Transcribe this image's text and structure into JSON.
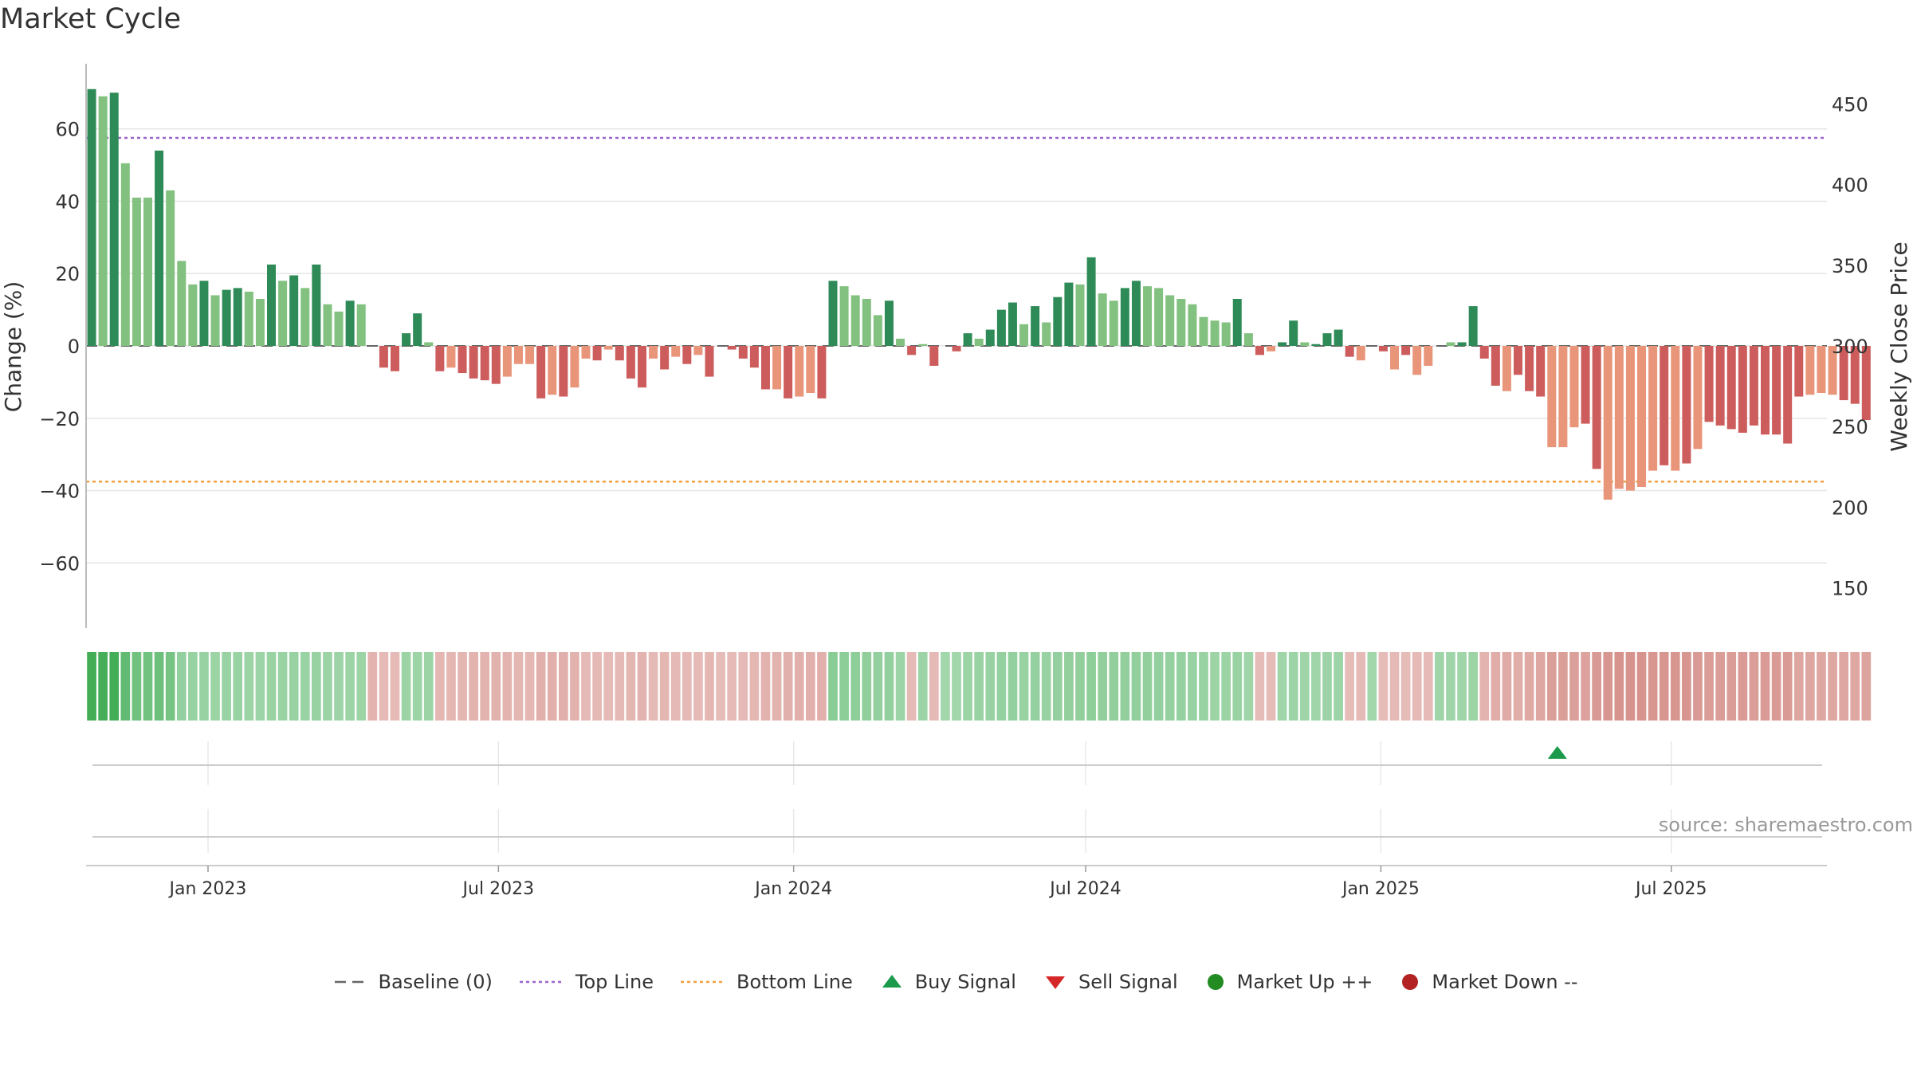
{
  "page": {
    "title": "Market Cycle",
    "source": "source: sharemaestro.com"
  },
  "legend": {
    "baseline": "Baseline (0)",
    "top_line": "Top Line",
    "bottom_line": "Bottom Line",
    "buy_signal": "Buy Signal",
    "sell_signal": "Sell Signal",
    "market_up": "Market Up ++",
    "market_down": "Market Down --"
  },
  "colors": {
    "bar_strong_up": "#2e8b57",
    "bar_up": "#82c17f",
    "bar_strong_down": "#cd5c5c",
    "bar_down": "#e8957a",
    "top_line": "#9966cc",
    "bottom_line": "#f0a040",
    "buy_signal": "#1a9a4a",
    "sell_signal": "#d62728",
    "market_up": "#228b22",
    "market_down": "#b22222",
    "baseline": "#666666"
  },
  "chart_data": {
    "type": "bar",
    "ylabel": "Change (%)",
    "ylabel_right": "Weekly Close Price",
    "ylim": [
      -78,
      78
    ],
    "yticks": [
      -60,
      -40,
      -20,
      0,
      20,
      40,
      60
    ],
    "ytick_labels": [
      "−60",
      "−40",
      "−20",
      "0",
      "20",
      "40",
      "60"
    ],
    "right_ylim": [
      125,
      475
    ],
    "right_yticks": [
      150,
      200,
      250,
      300,
      350,
      400,
      450
    ],
    "right_ytick_labels": [
      "150",
      "200",
      "250",
      "300",
      "350",
      "400",
      "450"
    ],
    "x_start": "2022-10-17",
    "x_end": "2025-10-06",
    "x_ticks": [
      {
        "date": "2023-01-01",
        "label": "Jan 2023"
      },
      {
        "date": "2023-07-01",
        "label": "Jul 2023"
      },
      {
        "date": "2024-01-01",
        "label": "Jan 2024"
      },
      {
        "date": "2024-07-01",
        "label": "Jul 2024"
      },
      {
        "date": "2025-01-01",
        "label": "Jan 2025"
      },
      {
        "date": "2025-07-01",
        "label": "Jul 2025"
      }
    ],
    "top_line": 57.5,
    "bottom_line": -37.5,
    "grid": true,
    "legend_position": "bottom",
    "first_week": "2022-10-17",
    "values": [
      71,
      69,
      70,
      50.5,
      41,
      41,
      54,
      43,
      23.5,
      17,
      18,
      14,
      15.5,
      16,
      15,
      13,
      22.5,
      18,
      19.5,
      16,
      22.5,
      11.5,
      9.5,
      12.5,
      11.5,
      0,
      -6,
      -7,
      3.5,
      9,
      1,
      -7,
      -6,
      -7.5,
      -9,
      -9.5,
      -10.5,
      -8.5,
      -5,
      -5,
      -14.5,
      -13.5,
      -14,
      -11.5,
      -3.5,
      -4,
      -1,
      -4,
      -9,
      -11.5,
      -3.5,
      -6.5,
      -3,
      -5,
      -2.5,
      -8.5,
      0,
      -1,
      -3.5,
      -6,
      -12,
      -12,
      -14.5,
      -14,
      -13,
      -14.5,
      18,
      16.5,
      14,
      13,
      8.5,
      12.5,
      2,
      -2.5,
      0.5,
      -5.5,
      0,
      -1.5,
      3.5,
      2,
      4.5,
      10,
      12,
      6,
      11,
      6.5,
      13.5,
      17.5,
      17,
      24.5,
      14.5,
      12.5,
      16,
      18,
      16.5,
      16,
      14,
      13,
      11.5,
      8,
      7,
      6.5,
      13,
      3.5,
      -2.5,
      -1.5,
      1,
      7,
      1,
      0.5,
      3.5,
      4.5,
      -3,
      -4,
      0,
      -1.5,
      -6.5,
      -2.5,
      -8,
      -5.5,
      0,
      1,
      1,
      11,
      -3.5,
      -11,
      -12.5,
      -8,
      -12.5,
      -14,
      -28,
      -28,
      -22.5,
      -21.5,
      -34,
      -42.5,
      -39.5,
      -40,
      -39,
      -34.5,
      -33,
      -34.5,
      -32.5,
      -28.5,
      -21,
      -22,
      -23,
      -24,
      -22,
      -24.5,
      -24.5,
      -27,
      -14,
      -13.5,
      -13,
      -13.5,
      -15,
      -16,
      -20.5
    ],
    "strength": [
      3,
      2,
      3,
      1,
      1,
      1,
      3,
      1,
      1,
      1,
      3,
      1,
      3,
      3,
      1,
      1,
      3,
      1,
      3,
      1,
      3,
      1,
      1,
      3,
      1,
      0,
      3,
      3,
      3,
      3,
      1,
      3,
      1,
      3,
      3,
      3,
      3,
      1,
      1,
      1,
      3,
      1,
      3,
      1,
      1,
      3,
      1,
      3,
      3,
      3,
      1,
      3,
      1,
      3,
      1,
      3,
      0,
      3,
      3,
      3,
      3,
      1,
      3,
      1,
      1,
      3,
      3,
      1,
      1,
      1,
      1,
      3,
      1,
      3,
      1,
      3,
      0,
      3,
      3,
      1,
      3,
      3,
      3,
      1,
      3,
      1,
      3,
      3,
      1,
      3,
      1,
      1,
      3,
      3,
      1,
      1,
      1,
      1,
      1,
      1,
      1,
      1,
      3,
      1,
      3,
      1,
      3,
      3,
      1,
      3,
      3,
      3,
      3,
      0,
      3,
      3,
      1,
      3,
      1,
      0,
      3,
      1,
      3,
      3,
      3,
      3,
      1,
      3,
      3,
      3,
      1,
      1,
      1,
      3,
      3,
      1,
      1,
      1,
      1,
      1,
      3,
      1,
      3,
      1,
      3,
      3,
      3,
      3,
      3,
      3,
      3,
      3,
      3,
      1,
      1,
      1,
      3,
      3,
      3
    ]
  },
  "heat_strip": {
    "values": [
      72,
      70,
      71,
      55,
      48,
      48,
      50,
      45,
      30,
      28,
      28,
      26,
      27,
      27,
      26,
      25,
      27,
      27,
      28,
      27,
      28,
      26,
      25,
      26,
      26,
      -18,
      -14,
      -14,
      26,
      26,
      26,
      -16,
      -16,
      -17,
      -18,
      -18,
      -19,
      -18,
      -16,
      -16,
      -20,
      -20,
      -20,
      -19,
      -15,
      -15,
      -14,
      -15,
      -17,
      -18,
      -15,
      -16,
      -15,
      -15,
      -14,
      -16,
      -13,
      -14,
      -15,
      -16,
      -19,
      -19,
      -20,
      -20,
      -20,
      -20,
      35,
      34,
      33,
      32,
      30,
      30,
      25,
      -14,
      25,
      -15,
      23,
      23,
      26,
      27,
      28,
      29,
      30,
      28,
      29,
      28,
      30,
      31,
      31,
      33,
      31,
      31,
      31,
      31,
      31,
      30,
      29,
      29,
      28,
      27,
      26,
      26,
      27,
      24,
      -13,
      -13,
      24,
      25,
      24,
      24,
      25,
      25,
      -13,
      -14,
      23,
      -13,
      -15,
      -13,
      -15,
      -14,
      24,
      24,
      24,
      26,
      -18,
      -22,
      -23,
      -22,
      -24,
      -25,
      -30,
      -30,
      -29,
      -28,
      -33,
      -35,
      -36,
      -36,
      -36,
      -35,
      -35,
      -35,
      -35,
      -33,
      -31,
      -31,
      -31,
      -32,
      -31,
      -32,
      -32,
      -33,
      -26,
      -26,
      -25,
      -25,
      -25,
      -25,
      -27
    ]
  },
  "signals": {
    "buy": [
      {
        "date": "2025-04-21"
      }
    ],
    "sell": []
  }
}
